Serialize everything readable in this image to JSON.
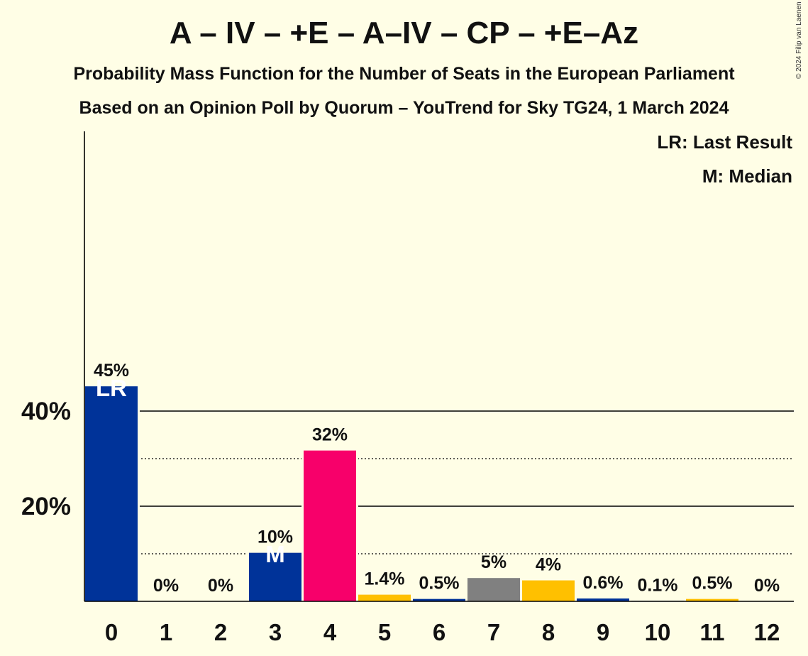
{
  "chart_data": {
    "type": "bar",
    "title": "A – IV – +E – A–IV – CP – +E–Az",
    "subtitle": "Probability Mass Function for the Number of Seats in the European Parliament",
    "subtitle2": "Based on an Opinion Poll by Quorum – YouTrend for Sky TG24, 1 March 2024",
    "copyright": "© 2024 Filip van Laenen",
    "categories": [
      "0",
      "1",
      "2",
      "3",
      "4",
      "5",
      "6",
      "7",
      "8",
      "9",
      "10",
      "11",
      "12"
    ],
    "values": [
      45.2,
      0,
      0,
      10.2,
      31.7,
      1.4,
      0.5,
      4.9,
      4.4,
      0.6,
      0.1,
      0.5,
      0
    ],
    "labels": [
      "45%",
      "0%",
      "0%",
      "10%",
      "32%",
      "1.4%",
      "0.5%",
      "5%",
      "4%",
      "0.6%",
      "0.1%",
      "0.5%",
      "0%"
    ],
    "colors": [
      "#003399",
      "#003399",
      "#003399",
      "#003399",
      "#F7006A",
      "#FFC000",
      "#003399",
      "#808080",
      "#FFC000",
      "#003399",
      "#003399",
      "#FFC000",
      "#003399"
    ],
    "inner_labels": [
      {
        "index": 0,
        "text": "LR"
      },
      {
        "index": 3,
        "text": "M"
      }
    ],
    "yticks": [
      {
        "value": 20,
        "label": "20%"
      },
      {
        "value": 40,
        "label": "40%"
      }
    ],
    "ylim": [
      0,
      49
    ],
    "legend": [
      "LR: Last Result",
      "M: Median"
    ],
    "legend_position": "top-right",
    "xlabel": "",
    "ylabel": ""
  }
}
